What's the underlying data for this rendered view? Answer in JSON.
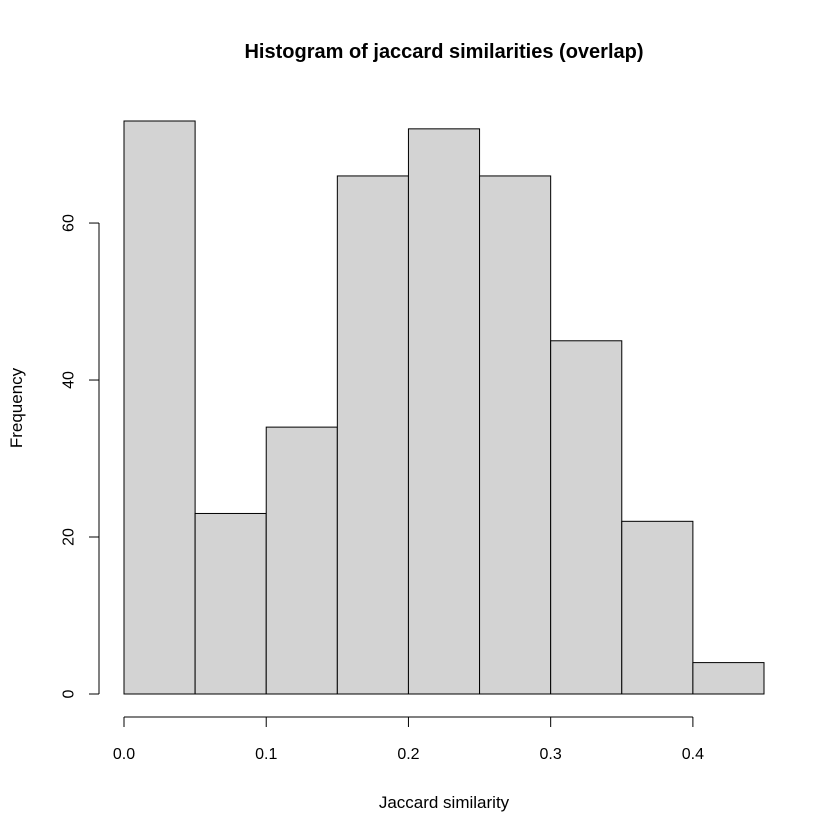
{
  "chart_data": {
    "type": "bar",
    "title": "Histogram of jaccard similarities (overlap)",
    "xlabel": "Jaccard similarity",
    "ylabel": "Frequency",
    "bins": [
      {
        "start": 0.0,
        "end": 0.05,
        "count": 73
      },
      {
        "start": 0.05,
        "end": 0.1,
        "count": 23
      },
      {
        "start": 0.1,
        "end": 0.15,
        "count": 34
      },
      {
        "start": 0.15,
        "end": 0.2,
        "count": 66
      },
      {
        "start": 0.2,
        "end": 0.25,
        "count": 72
      },
      {
        "start": 0.25,
        "end": 0.3,
        "count": 66
      },
      {
        "start": 0.3,
        "end": 0.35,
        "count": 45
      },
      {
        "start": 0.35,
        "end": 0.4,
        "count": 22
      },
      {
        "start": 0.4,
        "end": 0.45,
        "count": 4
      }
    ],
    "xlim": [
      0,
      0.45
    ],
    "ylim": [
      0,
      73
    ],
    "x_ticks": [
      {
        "value": 0.0,
        "label": "0.0"
      },
      {
        "value": 0.1,
        "label": "0.1"
      },
      {
        "value": 0.2,
        "label": "0.2"
      },
      {
        "value": 0.3,
        "label": "0.3"
      },
      {
        "value": 0.4,
        "label": "0.4"
      }
    ],
    "y_ticks": [
      {
        "value": 0,
        "label": "0"
      },
      {
        "value": 20,
        "label": "20"
      },
      {
        "value": 40,
        "label": "40"
      },
      {
        "value": 60,
        "label": "60"
      }
    ],
    "bar_color": "#d3d3d3",
    "grid": false
  }
}
